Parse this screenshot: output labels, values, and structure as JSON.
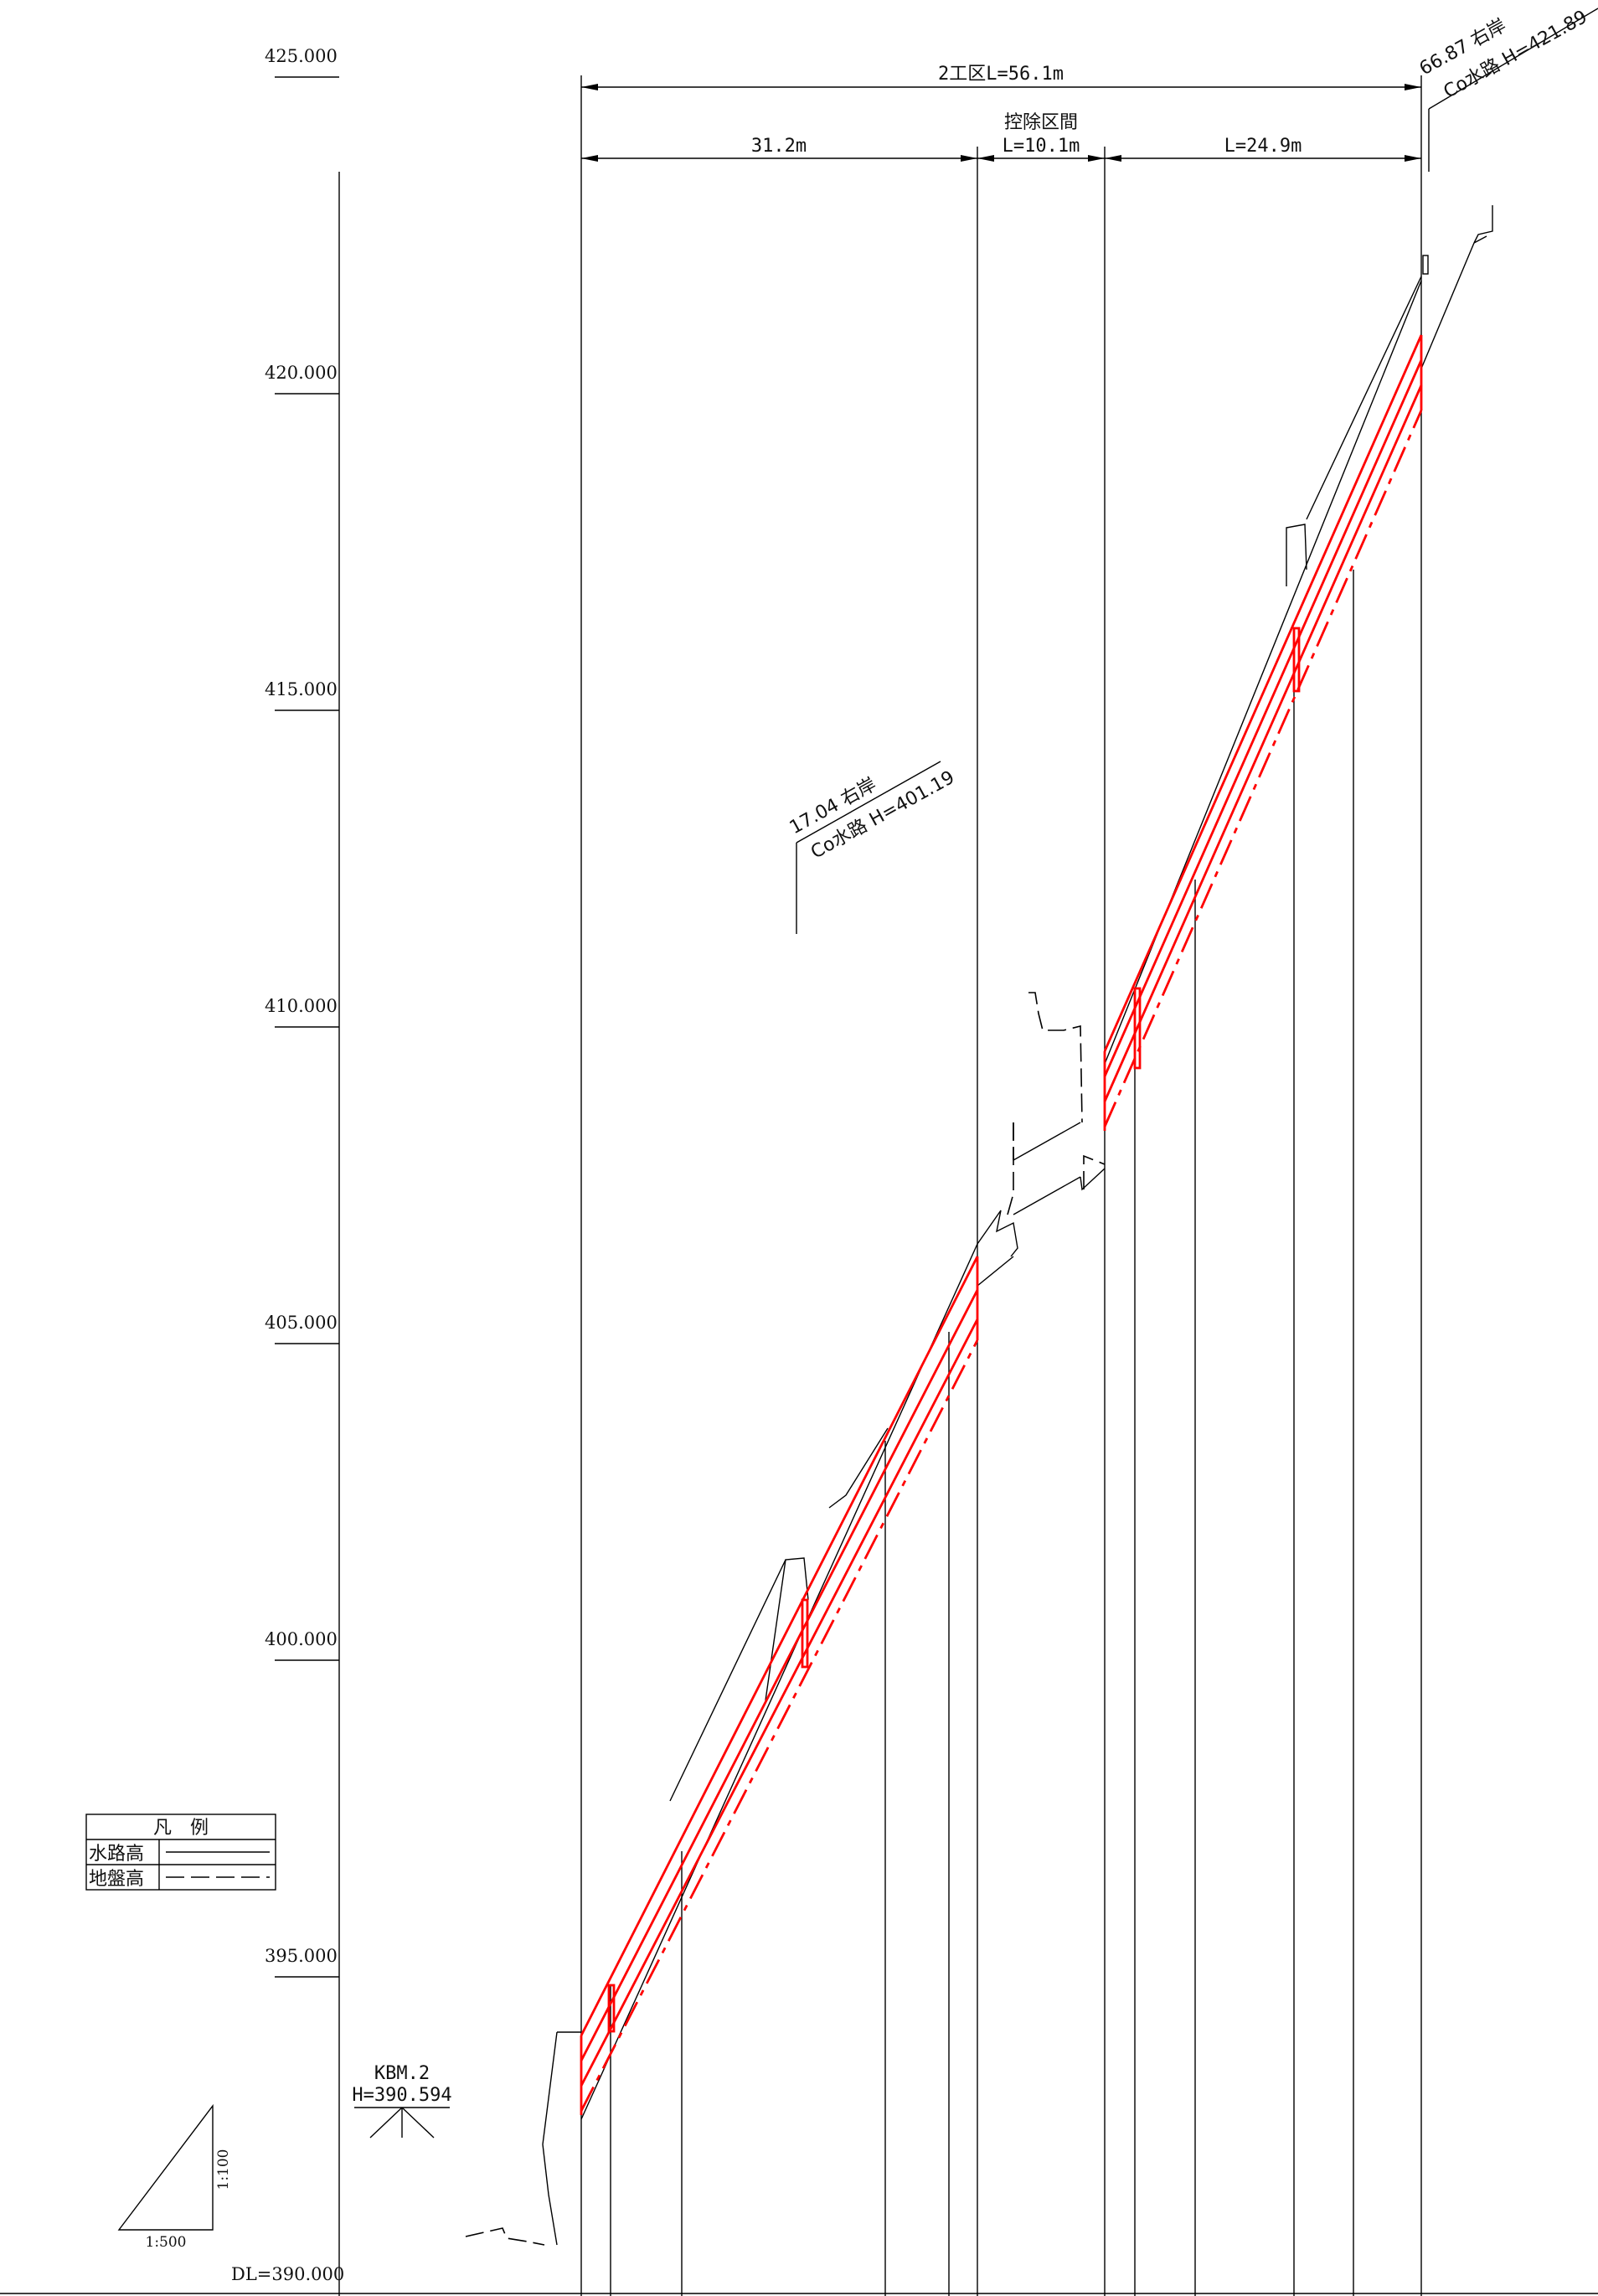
{
  "scale": {
    "elevations": [
      {
        "value": 425.0,
        "label": "425.000"
      },
      {
        "value": 420.0,
        "label": "420.000"
      },
      {
        "value": 415.0,
        "label": "415.000"
      },
      {
        "value": 410.0,
        "label": "410.000"
      },
      {
        "value": 405.0,
        "label": "405.000"
      },
      {
        "value": 400.0,
        "label": "400.000"
      },
      {
        "value": 395.0,
        "label": "395.000"
      }
    ],
    "datum_label": "DL=390.000"
  },
  "dimensions": {
    "total": "2工区L=56.1m",
    "left_segment": "31.2m",
    "excluded_title": "控除区間",
    "excluded_segment": "L=10.1m",
    "right_segment": "L=24.9m"
  },
  "annotations": {
    "upper_station": "66.87  右岸",
    "upper_channel": "Co水路 H=421.89",
    "mid_station": "17.04  右岸",
    "mid_channel": "Co水路 H=401.19"
  },
  "benchmark": {
    "name": "KBM.2",
    "height": "H=390.594"
  },
  "legend": {
    "title": "凡　例",
    "rows": [
      {
        "label": "水路高",
        "style": "solid"
      },
      {
        "label": "地盤高",
        "style": "dashed"
      }
    ]
  },
  "slope_triangle": {
    "horizontal": "1:500",
    "vertical": "1:100"
  },
  "colors": {
    "profile": "#ff0000",
    "linework": "#000000",
    "background": "#ffffff"
  }
}
